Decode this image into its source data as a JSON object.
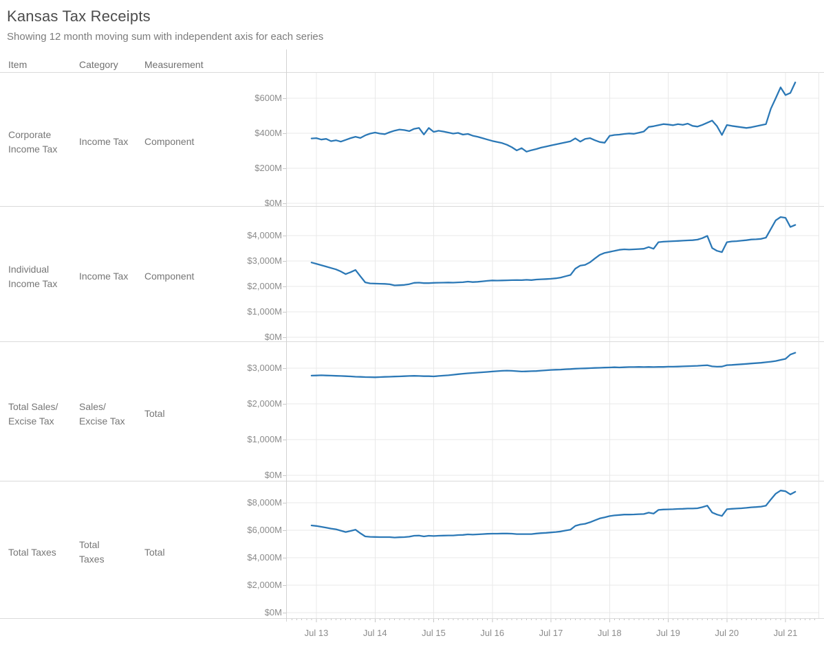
{
  "header": {
    "title": "Kansas Tax Receipts",
    "subtitle": "Showing 12 month moving sum with independent axis for each series"
  },
  "columns": {
    "item": "Item",
    "category": "Category",
    "measurement": "Measurement"
  },
  "colors": {
    "line": "#2b78b6",
    "grid": "#e8e8e8",
    "separator": "#dadada",
    "divider": "#d2d2d2",
    "tick": "#c4c4c4",
    "axis_text": "#8b8b8b",
    "label_text": "#767676",
    "title_text": "#4c4c4c",
    "subtitle_text": "#7b7b7b"
  },
  "x_axis": {
    "start_month": "2013-06",
    "months": 100,
    "frequency": "monthly",
    "tick_labels": [
      "Jul 13",
      "Jul 14",
      "Jul 15",
      "Jul 16",
      "Jul 17",
      "Jul 18",
      "Jul 19",
      "Jul 20",
      "Jul 21"
    ]
  },
  "chart_data": [
    {
      "type": "line",
      "item": "Corporate\nIncome Tax",
      "category": "Income Tax",
      "measurement": "Component",
      "unit": "$M",
      "ylim": [
        0,
        750
      ],
      "yticks": [
        {
          "value": 600,
          "label": "$600M"
        },
        {
          "value": 400,
          "label": "$400M"
        },
        {
          "value": 200,
          "label": "$200M"
        },
        {
          "value": 0,
          "label": "$0M"
        }
      ],
      "values": [
        370,
        372,
        364,
        368,
        355,
        360,
        352,
        362,
        372,
        380,
        373,
        388,
        398,
        404,
        398,
        395,
        406,
        415,
        421,
        418,
        412,
        425,
        430,
        393,
        430,
        408,
        414,
        410,
        404,
        398,
        402,
        392,
        396,
        386,
        380,
        372,
        364,
        356,
        350,
        344,
        334,
        320,
        302,
        315,
        295,
        303,
        310,
        318,
        324,
        330,
        336,
        342,
        348,
        354,
        371,
        352,
        368,
        372,
        360,
        350,
        346,
        385,
        390,
        392,
        396,
        399,
        397,
        403,
        410,
        436,
        440,
        446,
        452,
        450,
        446,
        452,
        448,
        455,
        442,
        438,
        448,
        460,
        472,
        440,
        390,
        447,
        442,
        438,
        434,
        430,
        434,
        440,
        446,
        452,
        540,
        600,
        662,
        618,
        630,
        690
      ]
    },
    {
      "type": "line",
      "item": "Individual\nIncome Tax",
      "category": "Income Tax",
      "measurement": "Component",
      "unit": "$M",
      "ylim": [
        0,
        5135
      ],
      "yticks": [
        {
          "value": 4000,
          "label": "$4,000M"
        },
        {
          "value": 3000,
          "label": "$3,000M"
        },
        {
          "value": 2000,
          "label": "$2,000M"
        },
        {
          "value": 1000,
          "label": "$1,000M"
        },
        {
          "value": 0,
          "label": "$0M"
        }
      ],
      "values": [
        2940,
        2890,
        2835,
        2780,
        2725,
        2670,
        2590,
        2484,
        2560,
        2645,
        2400,
        2160,
        2120,
        2110,
        2105,
        2100,
        2085,
        2040,
        2050,
        2060,
        2090,
        2140,
        2150,
        2130,
        2130,
        2140,
        2145,
        2150,
        2155,
        2150,
        2160,
        2165,
        2190,
        2170,
        2180,
        2200,
        2220,
        2235,
        2230,
        2235,
        2240,
        2245,
        2250,
        2245,
        2260,
        2250,
        2270,
        2280,
        2290,
        2300,
        2320,
        2350,
        2400,
        2450,
        2700,
        2820,
        2850,
        2950,
        3100,
        3240,
        3320,
        3360,
        3400,
        3440,
        3460,
        3450,
        3460,
        3470,
        3480,
        3550,
        3480,
        3740,
        3760,
        3770,
        3780,
        3790,
        3800,
        3810,
        3820,
        3840,
        3900,
        3990,
        3510,
        3400,
        3350,
        3740,
        3770,
        3780,
        3800,
        3820,
        3845,
        3855,
        3870,
        3920,
        4260,
        4600,
        4730,
        4700,
        4340,
        4420
      ]
    },
    {
      "type": "line",
      "item": "Total Sales/\nExcise Tax",
      "category": "Sales/\nExcise Tax",
      "measurement": "Total",
      "unit": "$M",
      "ylim": [
        0,
        3750
      ],
      "yticks": [
        {
          "value": 3000,
          "label": "$3,000M"
        },
        {
          "value": 2000,
          "label": "$2,000M"
        },
        {
          "value": 1000,
          "label": "$1,000M"
        },
        {
          "value": 0,
          "label": "$0M"
        }
      ],
      "values": [
        2790,
        2795,
        2800,
        2795,
        2790,
        2785,
        2780,
        2775,
        2770,
        2760,
        2755,
        2750,
        2748,
        2745,
        2750,
        2755,
        2760,
        2765,
        2770,
        2775,
        2780,
        2785,
        2780,
        2775,
        2775,
        2770,
        2780,
        2790,
        2800,
        2815,
        2830,
        2845,
        2855,
        2865,
        2875,
        2885,
        2895,
        2905,
        2915,
        2925,
        2930,
        2925,
        2915,
        2905,
        2910,
        2915,
        2920,
        2930,
        2940,
        2950,
        2955,
        2960,
        2970,
        2975,
        2985,
        2990,
        2995,
        3000,
        3005,
        3010,
        3015,
        3020,
        3025,
        3020,
        3025,
        3030,
        3030,
        3035,
        3030,
        3035,
        3030,
        3035,
        3035,
        3040,
        3040,
        3045,
        3050,
        3055,
        3060,
        3065,
        3075,
        3080,
        3050,
        3040,
        3045,
        3085,
        3090,
        3100,
        3110,
        3120,
        3130,
        3140,
        3150,
        3165,
        3180,
        3200,
        3230,
        3260,
        3380,
        3430
      ]
    },
    {
      "type": "line",
      "item": "Total Taxes",
      "category": "Total\nTaxes",
      "measurement": "Total",
      "unit": "$M",
      "ylim": [
        0,
        9600
      ],
      "yticks": [
        {
          "value": 8000,
          "label": "$8,000M"
        },
        {
          "value": 6000,
          "label": "$6,000M"
        },
        {
          "value": 4000,
          "label": "$4,000M"
        },
        {
          "value": 2000,
          "label": "$2,000M"
        },
        {
          "value": 0,
          "label": "$0M"
        }
      ],
      "values": [
        6350,
        6310,
        6250,
        6190,
        6120,
        6070,
        5970,
        5870,
        5950,
        6040,
        5780,
        5550,
        5520,
        5510,
        5500,
        5500,
        5500,
        5470,
        5490,
        5500,
        5530,
        5600,
        5610,
        5550,
        5600,
        5580,
        5600,
        5610,
        5620,
        5620,
        5650,
        5660,
        5700,
        5680,
        5700,
        5720,
        5740,
        5750,
        5750,
        5760,
        5760,
        5750,
        5720,
        5720,
        5720,
        5720,
        5760,
        5790,
        5810,
        5840,
        5870,
        5910,
        5980,
        6040,
        6320,
        6420,
        6470,
        6580,
        6720,
        6860,
        6940,
        7030,
        7080,
        7110,
        7140,
        7140,
        7150,
        7170,
        7180,
        7280,
        7210,
        7480,
        7510,
        7520,
        7530,
        7550,
        7560,
        7580,
        7580,
        7600,
        7680,
        7790,
        7290,
        7140,
        7040,
        7530,
        7560,
        7580,
        7600,
        7630,
        7670,
        7690,
        7720,
        7790,
        8240,
        8660,
        8890,
        8840,
        8610,
        8800
      ]
    }
  ]
}
